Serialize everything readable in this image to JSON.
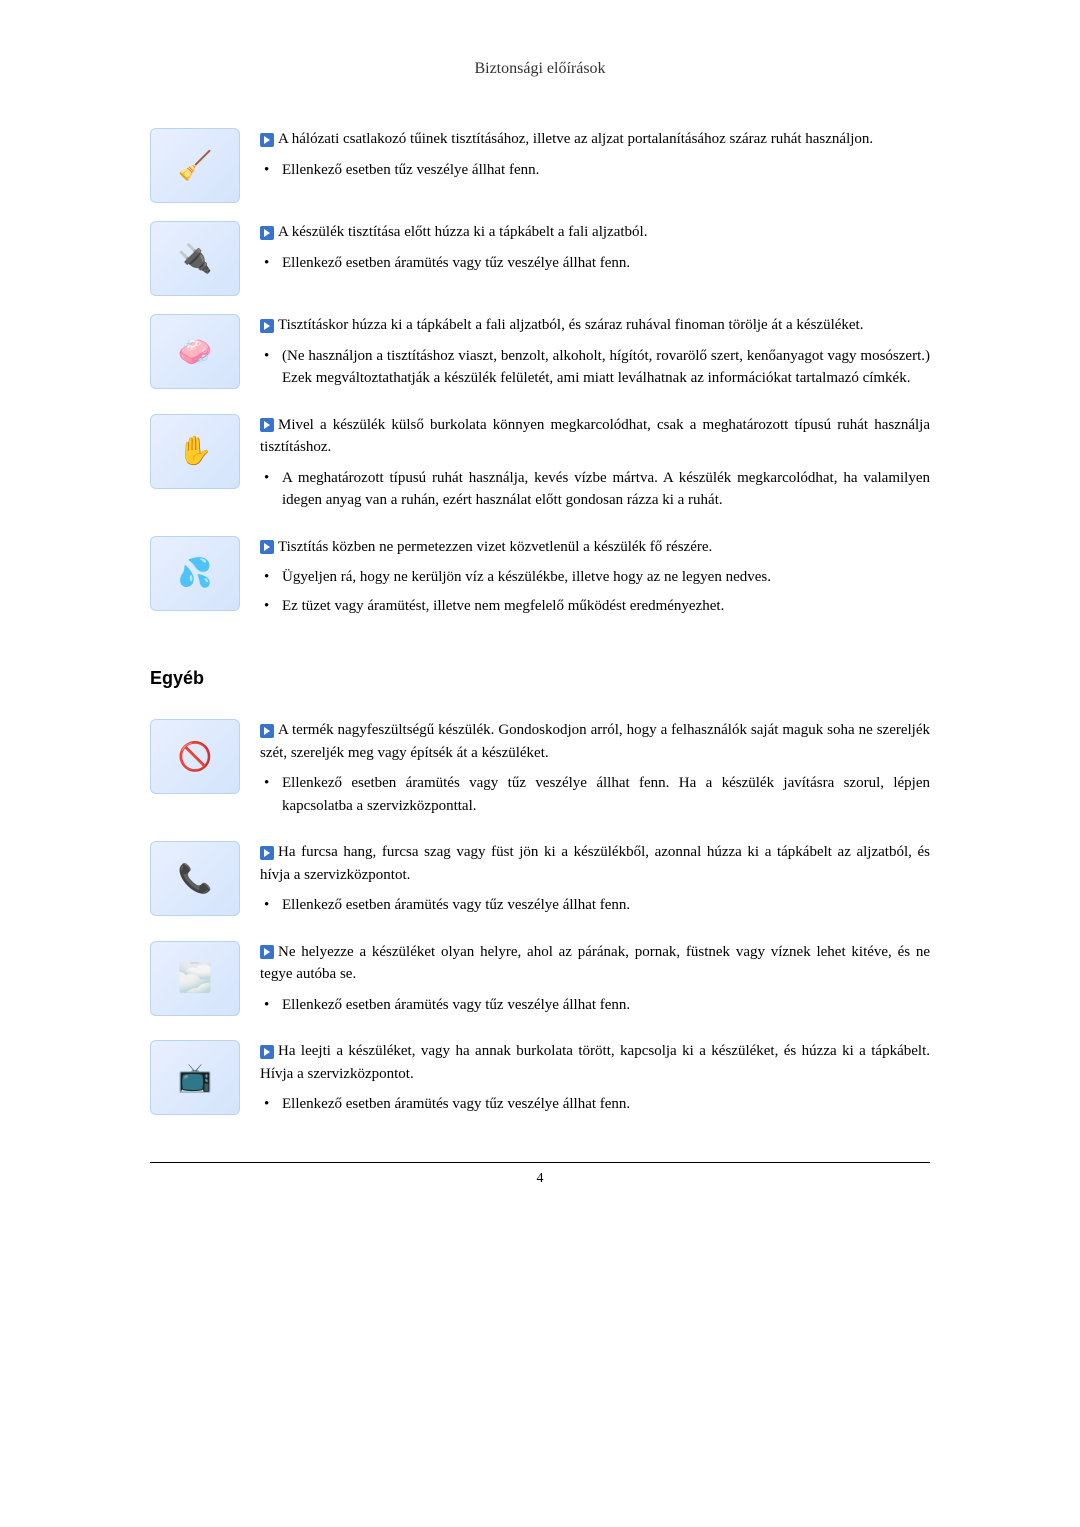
{
  "header": {
    "title": "Biztonsági előírások"
  },
  "items": [
    {
      "icon_emoji": "🧹",
      "main": "A hálózati csatlakozó tűinek tisztításához, illetve az aljzat portalanításához száraz ruhát használjon.",
      "subs": [
        "Ellenkező esetben tűz veszélye állhat fenn."
      ]
    },
    {
      "icon_emoji": "🔌",
      "main": "A készülék tisztítása előtt húzza ki a tápkábelt a fali aljzatból.",
      "subs": [
        "Ellenkező esetben áramütés vagy tűz veszélye állhat fenn."
      ]
    },
    {
      "icon_emoji": "🧼",
      "main": "Tisztításkor húzza ki a tápkábelt a fali aljzatból, és száraz ruhával finoman törölje át a készüléket.",
      "subs": [
        "(Ne használjon a tisztításhoz viaszt, benzolt, alkoholt, hígítót, rovarölő szert, kenőanyagot vagy mosószert.) Ezek megváltoztathatják a készülék felületét, ami miatt leválhatnak az információkat tartalmazó címkék."
      ]
    },
    {
      "icon_emoji": "✋",
      "main": "Mivel a készülék külső burkolata könnyen megkarcolódhat, csak a meghatározott típusú ruhát használja tisztításhoz.",
      "subs": [
        "A meghatározott típusú ruhát használja, kevés vízbe mártva. A készülék megkarcolódhat, ha valamilyen idegen anyag van a ruhán, ezért használat előtt gondosan rázza ki a ruhát."
      ]
    },
    {
      "icon_emoji": "💦",
      "main": "Tisztítás közben ne permetezzen vizet közvetlenül a készülék fő részére.",
      "subs": [
        "Ügyeljen rá, hogy ne kerüljön víz a készülékbe, illetve hogy az ne legyen nedves.",
        "Ez tüzet vagy áramütést, illetve nem megfelelő működést eredményezhet."
      ]
    }
  ],
  "section2": {
    "title": "Egyéb"
  },
  "items2": [
    {
      "icon_emoji": "🚫",
      "main": "A termék nagyfeszültségű készülék. Gondoskodjon arról, hogy a felhasználók saját maguk soha ne szereljék szét, szereljék meg vagy építsék át a készüléket.",
      "subs": [
        "Ellenkező esetben áramütés vagy tűz veszélye állhat fenn. Ha a készülék javításra szorul, lépjen kapcsolatba a szervizközponttal."
      ]
    },
    {
      "icon_emoji": "📞",
      "main": "Ha furcsa hang, furcsa szag vagy füst jön ki a készülékből, azonnal húzza ki a tápkábelt az aljzatból, és hívja a szervizközpontot.",
      "subs": [
        "Ellenkező esetben áramütés vagy tűz veszélye állhat fenn."
      ]
    },
    {
      "icon_emoji": "🌫️",
      "main": "Ne helyezze a készüléket olyan helyre, ahol az párának, pornak, füstnek vagy víznek lehet kitéve, és ne tegye autóba se.",
      "subs": [
        "Ellenkező esetben áramütés vagy tűz veszélye állhat fenn."
      ]
    },
    {
      "icon_emoji": "📺",
      "main": "Ha leejti a készüléket, vagy ha annak burkolata törött, kapcsolja ki a készüléket, és húzza ki a tápkábelt. Hívja a szervizközpontot.",
      "subs": [
        "Ellenkező esetben áramütés vagy tűz veszélye állhat fenn."
      ]
    }
  ],
  "footer": {
    "page_number": "4"
  }
}
